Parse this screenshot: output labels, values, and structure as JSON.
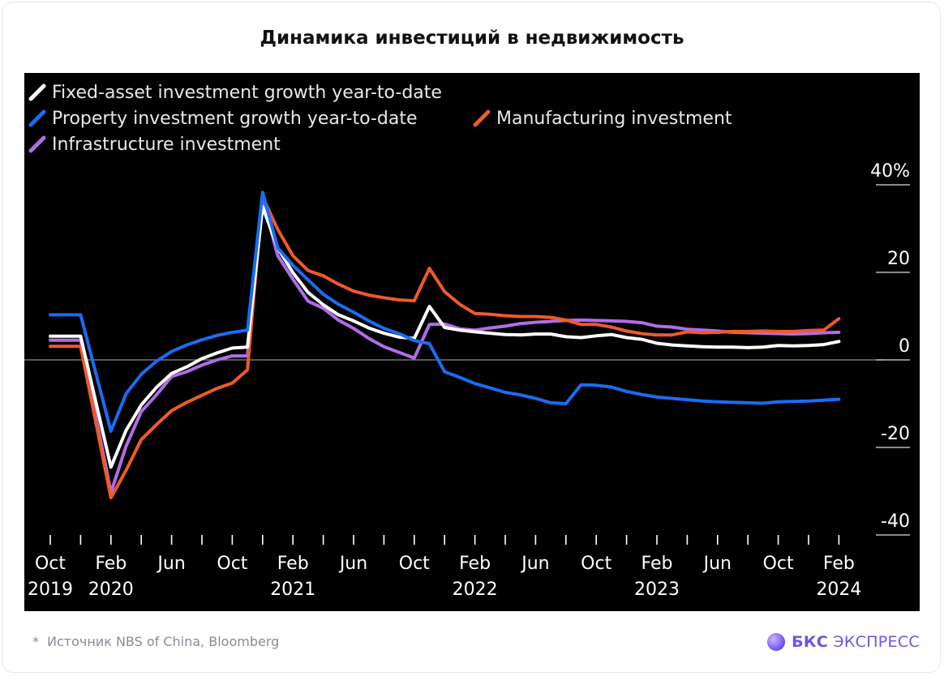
{
  "header": {
    "title": "Динамика инвестиций в недвижимость"
  },
  "footer": {
    "note_mark": "*",
    "source": "Источник NBS of China, Bloomberg",
    "brand_bold": "БКС",
    "brand_rest": "ЭКСПРЕСС"
  },
  "colors": {
    "background": "#000000",
    "fixed_asset": "#ffffff",
    "property": "#1a6cf2",
    "manufacturing": "#f05a28",
    "infrastructure": "#b06de8",
    "zero_line": "#8c8c8c",
    "axis_text": "#ffffff",
    "brand": "#6a55e6"
  },
  "chart_data": {
    "type": "line",
    "title": "Динамика инвестиций в недвижимость",
    "xlabel": "",
    "ylabel": "",
    "ylim": [
      -40,
      40
    ],
    "y_ticks": [
      40,
      20,
      0,
      -20,
      -40
    ],
    "y_tick_labels": [
      "40%",
      "20",
      "0",
      "-20",
      "-40"
    ],
    "y_axis_side": "right",
    "grid": false,
    "legend_position": "top-left",
    "x_axis_type": "month index (0 = Oct 2019)",
    "x_ticks": [
      0,
      4,
      8,
      12,
      16,
      20,
      24,
      28,
      32,
      36,
      40,
      44,
      48,
      52
    ],
    "x_tick_labels": [
      [
        "Oct",
        "2019"
      ],
      [
        "Feb",
        "2020"
      ],
      [
        "Jun",
        ""
      ],
      [
        "Oct",
        ""
      ],
      [
        "Feb",
        "2021"
      ],
      [
        "Jun",
        ""
      ],
      [
        "Oct",
        ""
      ],
      [
        "Feb",
        "2022"
      ],
      [
        "Jun",
        ""
      ],
      [
        "Oct",
        ""
      ],
      [
        "Feb",
        "2023"
      ],
      [
        "Jun",
        ""
      ],
      [
        "Oct",
        ""
      ],
      [
        "Feb",
        "2024"
      ]
    ],
    "series": [
      {
        "name": "Fixed-asset investment growth year-to-date",
        "color": "#ffffff",
        "x": [
          0,
          2,
          4,
          5,
          6,
          7,
          8,
          9,
          10,
          11,
          12,
          13,
          14,
          15,
          16,
          17,
          18,
          19,
          20,
          21,
          22,
          23,
          24,
          25,
          26,
          27,
          28,
          29,
          30,
          31,
          32,
          33,
          34,
          35,
          36,
          37,
          38,
          39,
          40,
          41,
          42,
          43,
          44,
          45,
          46,
          47,
          48,
          49,
          50,
          51,
          52
        ],
        "values": [
          5.4,
          5.4,
          -24.5,
          -16.1,
          -10.3,
          -6.3,
          -3.1,
          -1.6,
          0.3,
          1.6,
          2.7,
          2.9,
          35.0,
          25.6,
          19.9,
          15.4,
          12.6,
          10.3,
          8.9,
          7.3,
          6.1,
          5.2,
          4.9,
          12.2,
          7.4,
          6.8,
          6.4,
          6.1,
          5.8,
          5.7,
          5.9,
          5.9,
          5.3,
          5.1,
          5.5,
          5.8,
          5.1,
          4.7,
          3.8,
          3.4,
          3.2,
          3.0,
          2.9,
          2.9,
          2.8,
          2.9,
          3.3,
          3.2,
          3.3,
          3.5,
          4.2
        ]
      },
      {
        "name": "Property investment growth year-to-date",
        "color": "#1a6cf2",
        "x": [
          0,
          2,
          4,
          5,
          6,
          7,
          8,
          9,
          10,
          11,
          12,
          13,
          14,
          15,
          16,
          17,
          18,
          19,
          20,
          21,
          22,
          23,
          24,
          25,
          26,
          27,
          28,
          29,
          30,
          31,
          32,
          33,
          34,
          35,
          36,
          37,
          38,
          39,
          40,
          41,
          42,
          43,
          44,
          45,
          46,
          47,
          48,
          49,
          50,
          51,
          52
        ],
        "values": [
          10.3,
          10.3,
          -16.3,
          -7.7,
          -3.3,
          -0.3,
          1.9,
          3.4,
          4.6,
          5.6,
          6.3,
          6.8,
          38.3,
          25.6,
          21.6,
          18.3,
          15.0,
          12.7,
          10.9,
          8.9,
          7.2,
          6.0,
          4.4,
          3.7,
          -2.7,
          -4.0,
          -5.4,
          -6.4,
          -7.4,
          -8.0,
          -8.8,
          -9.8,
          -10.0,
          -5.7,
          -5.8,
          -6.2,
          -7.2,
          -7.9,
          -8.5,
          -8.8,
          -9.1,
          -9.4,
          -9.6,
          -9.7,
          -9.8,
          -9.9,
          -9.6,
          -9.5,
          -9.4,
          -9.2,
          -9.0
        ]
      },
      {
        "name": "Manufacturing investment",
        "color": "#f05a28",
        "x": [
          0,
          2,
          4,
          5,
          6,
          7,
          8,
          9,
          10,
          11,
          12,
          13,
          14,
          15,
          16,
          17,
          18,
          19,
          20,
          21,
          22,
          23,
          24,
          25,
          26,
          27,
          28,
          29,
          30,
          31,
          32,
          33,
          34,
          35,
          36,
          37,
          38,
          39,
          40,
          41,
          42,
          43,
          44,
          45,
          46,
          47,
          48,
          49,
          50,
          51,
          52
        ],
        "values": [
          3.1,
          3.1,
          -31.5,
          -25.2,
          -18.2,
          -14.8,
          -11.6,
          -9.7,
          -8.1,
          -6.5,
          -5.3,
          -2.3,
          37.3,
          29.8,
          23.8,
          20.4,
          19.2,
          17.3,
          15.7,
          14.8,
          14.2,
          13.7,
          13.5,
          20.9,
          15.6,
          12.7,
          10.6,
          10.4,
          10.1,
          9.9,
          9.9,
          9.7,
          9.1,
          8.1,
          8.1,
          7.5,
          6.6,
          6.0,
          5.7,
          5.7,
          6.4,
          6.2,
          6.3,
          6.5,
          6.5,
          6.6,
          6.5,
          6.5,
          6.7,
          6.8,
          9.4
        ]
      },
      {
        "name": "Infrastructure investment",
        "color": "#b06de8",
        "x": [
          0,
          2,
          4,
          5,
          6,
          7,
          8,
          9,
          10,
          11,
          12,
          13,
          14,
          15,
          16,
          17,
          18,
          19,
          20,
          21,
          22,
          23,
          24,
          25,
          26,
          27,
          28,
          29,
          30,
          31,
          32,
          33,
          34,
          35,
          36,
          37,
          38,
          39,
          40,
          41,
          42,
          43,
          44,
          45,
          46,
          47,
          48,
          49,
          50,
          51,
          52
        ],
        "values": [
          4.5,
          4.5,
          -30.3,
          -19.7,
          -11.8,
          -8.0,
          -3.8,
          -2.7,
          -1.2,
          0.0,
          0.9,
          0.9,
          36.6,
          23.8,
          18.4,
          13.4,
          11.8,
          9.1,
          7.2,
          4.9,
          3.0,
          1.7,
          0.4,
          8.1,
          8.2,
          7.1,
          6.8,
          7.3,
          7.7,
          8.3,
          8.6,
          8.8,
          9.0,
          9.1,
          9.0,
          8.9,
          8.8,
          8.5,
          7.7,
          7.5,
          7.0,
          6.8,
          6.6,
          6.3,
          6.2,
          6.1,
          6.0,
          5.9,
          6.0,
          6.2,
          6.3
        ]
      }
    ]
  }
}
